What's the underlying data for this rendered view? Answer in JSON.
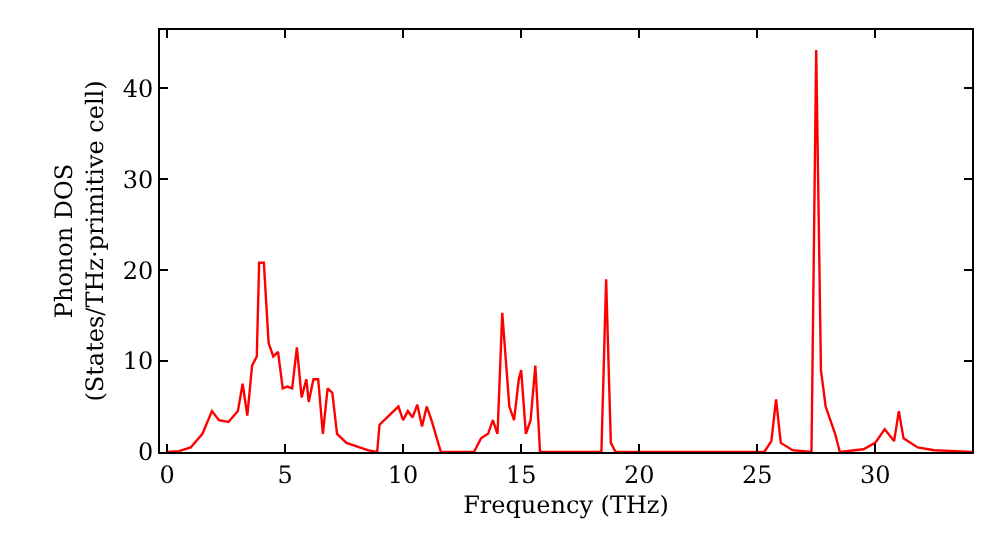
{
  "chart_data": {
    "type": "line",
    "xlabel": "Frequency (THz)",
    "ylabel": "Phonon DOS\n(States/THz·primitive cell)",
    "x": [
      0,
      0.5,
      1,
      1.5,
      1.9,
      2.2,
      2.6,
      3.0,
      3.2,
      3.4,
      3.6,
      3.8,
      3.9,
      4.1,
      4.3,
      4.5,
      4.7,
      4.9,
      5.1,
      5.3,
      5.5,
      5.7,
      5.9,
      6.0,
      6.2,
      6.4,
      6.6,
      6.8,
      7.0,
      7.2,
      7.6,
      8.5,
      8.9,
      9.0,
      9.4,
      9.8,
      10.0,
      10.2,
      10.4,
      10.6,
      10.8,
      11.0,
      11.2,
      11.6,
      13.0,
      13.3,
      13.6,
      13.8,
      14.0,
      14.2,
      14.5,
      14.7,
      14.9,
      15.0,
      15.2,
      15.4,
      15.6,
      15.8,
      18.4,
      18.6,
      18.8,
      19.0,
      25.3,
      25.6,
      25.8,
      26.0,
      26.5,
      27.3,
      27.5,
      27.7,
      27.9,
      28.3,
      28.5,
      29.5,
      30.0,
      30.4,
      30.8,
      31.0,
      31.2,
      31.8,
      32.5,
      34.1
    ],
    "series": [
      {
        "color": "#ff0000",
        "values": [
          0,
          0.1,
          0.5,
          2,
          4.5,
          3.5,
          3.3,
          4.5,
          7.5,
          4,
          9.5,
          10.5,
          20.8,
          20.8,
          12,
          10.5,
          11,
          7,
          7.2,
          7,
          11.5,
          6,
          8,
          5.5,
          8,
          8,
          2,
          7,
          6.5,
          2,
          1,
          0.2,
          0,
          3,
          4,
          5,
          3.5,
          4.5,
          3.8,
          5.2,
          2.8,
          5,
          3.5,
          0,
          0,
          1.5,
          2,
          3.5,
          2,
          15.3,
          5,
          3.5,
          8,
          9,
          2,
          3.5,
          9.5,
          0,
          0,
          19,
          1,
          0,
          0,
          1.2,
          5.8,
          1,
          0.2,
          0,
          44.2,
          9,
          5,
          2,
          0,
          0.3,
          1,
          2.5,
          1.2,
          4.5,
          1.5,
          0.5,
          0.2,
          0
        ]
      }
    ],
    "xlim": [
      -0.3,
      34.1
    ],
    "ylim": [
      0,
      46.4
    ],
    "xticks": [
      0,
      5,
      10,
      15,
      20,
      25,
      30
    ],
    "yticks": [
      0,
      10,
      20,
      30,
      40
    ],
    "legend": false,
    "marker": "none",
    "line_style": "solid"
  }
}
